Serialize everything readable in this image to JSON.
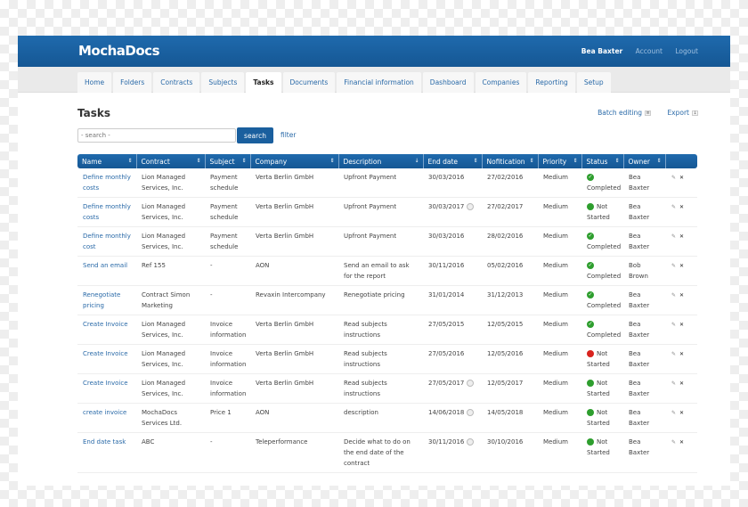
{
  "app": {
    "logo": "MochaDocs",
    "user": "Bea Baxter",
    "account": "Account",
    "logout": "Logout"
  },
  "tabs": [
    {
      "label": "Home"
    },
    {
      "label": "Folders"
    },
    {
      "label": "Contracts"
    },
    {
      "label": "Subjects"
    },
    {
      "label": "Tasks",
      "active": true
    },
    {
      "label": "Documents"
    },
    {
      "label": "Financial information"
    },
    {
      "label": "Dashboard"
    },
    {
      "label": "Companies"
    },
    {
      "label": "Reporting"
    },
    {
      "label": "Setup"
    }
  ],
  "page": {
    "title": "Tasks",
    "batch_editing": "Batch editing",
    "export": "Export",
    "search_placeholder": "- search -",
    "search_button": "search",
    "filter": "filter"
  },
  "colors": {
    "header": "#1a5f9e",
    "link": "#2a6aa8",
    "completed": "#2e9e2e",
    "not_started": "#2e9e2e",
    "overdue": "#d9231e"
  },
  "table": {
    "columns": [
      "Name",
      "Contract",
      "Subject",
      "Company",
      "Description",
      "End date",
      "Nofitication",
      "Priority",
      "Status",
      "Owner",
      ""
    ],
    "rows": [
      {
        "name": "Define monthly costs",
        "contract": "Lion Managed Services, Inc.",
        "subject": "Payment schedule",
        "company": "Verta Berlin GmbH",
        "description": "Upfront Payment",
        "end_date": "30/03/2016",
        "clock": false,
        "notification": "27/02/2016",
        "priority": "Medium",
        "status": "Completed",
        "status_color": "green",
        "owner": "Bea Baxter"
      },
      {
        "name": "Define monthly costs",
        "contract": "Lion Managed Services, Inc.",
        "subject": "Payment schedule",
        "company": "Verta Berlin GmbH",
        "description": "Upfront Payment",
        "end_date": "30/03/2017",
        "clock": true,
        "notification": "27/02/2017",
        "priority": "Medium",
        "status": "Not Started",
        "status_color": "green",
        "owner": "Bea Baxter"
      },
      {
        "name": "Define monthly cost",
        "contract": "Lion Managed Services, Inc.",
        "subject": "Payment schedule",
        "company": "Verta Berlin GmbH",
        "description": "Upfront Payment",
        "end_date": "30/03/2016",
        "clock": false,
        "notification": "28/02/2016",
        "priority": "Medium",
        "status": "Completed",
        "status_color": "green",
        "owner": "Bea Baxter"
      },
      {
        "name": "Send an email",
        "contract": "Ref 155",
        "subject": "-",
        "company": "AON",
        "description": "Send an email to ask for the report",
        "end_date": "30/11/2016",
        "clock": false,
        "notification": "05/02/2016",
        "priority": "Medium",
        "status": "Completed",
        "status_color": "green",
        "owner": "Bob Brown"
      },
      {
        "name": "Renegotiate pricing",
        "contract": "Contract Simon Marketing",
        "subject": "-",
        "company": "Revaxin Intercompany",
        "description": "Renegotiate pricing",
        "end_date": "31/01/2014",
        "clock": false,
        "notification": "31/12/2013",
        "priority": "Medium",
        "status": "Completed",
        "status_color": "green",
        "owner": "Bea Baxter"
      },
      {
        "name": "Create Invoice",
        "contract": "Lion Managed Services, Inc.",
        "subject": "Invoice information",
        "company": "Verta Berlin GmbH",
        "description": "Read subjects instructions",
        "end_date": "27/05/2015",
        "clock": false,
        "notification": "12/05/2015",
        "priority": "Medium",
        "status": "Completed",
        "status_color": "green",
        "owner": "Bea Baxter"
      },
      {
        "name": "Create Invoice",
        "contract": "Lion Managed Services, Inc.",
        "subject": "Invoice information",
        "company": "Verta Berlin GmbH",
        "description": "Read subjects instructions",
        "end_date": "27/05/2016",
        "clock": false,
        "notification": "12/05/2016",
        "priority": "Medium",
        "status": "Not Started",
        "status_color": "red",
        "owner": "Bea Baxter"
      },
      {
        "name": "Create Invoice",
        "contract": "Lion Managed Services, Inc.",
        "subject": "Invoice information",
        "company": "Verta Berlin GmbH",
        "description": "Read subjects instructions",
        "end_date": "27/05/2017",
        "clock": true,
        "notification": "12/05/2017",
        "priority": "Medium",
        "status": "Not Started",
        "status_color": "green",
        "owner": "Bea Baxter"
      },
      {
        "name": "create invoice",
        "contract": "MochaDocs Services Ltd.",
        "subject": "Price 1",
        "company": "AON",
        "description": "description",
        "end_date": "14/06/2018",
        "clock": true,
        "notification": "14/05/2018",
        "priority": "Medium",
        "status": "Not Started",
        "status_color": "green",
        "owner": "Bea Baxter"
      },
      {
        "name": "End date task",
        "contract": "ABC",
        "subject": "-",
        "company": "Teleperformance",
        "description": "Decide what to do on the end date of the contract",
        "end_date": "30/11/2016",
        "clock": true,
        "notification": "30/10/2016",
        "priority": "Medium",
        "status": "Not Started",
        "status_color": "green",
        "owner": "Bea Baxter"
      }
    ]
  }
}
